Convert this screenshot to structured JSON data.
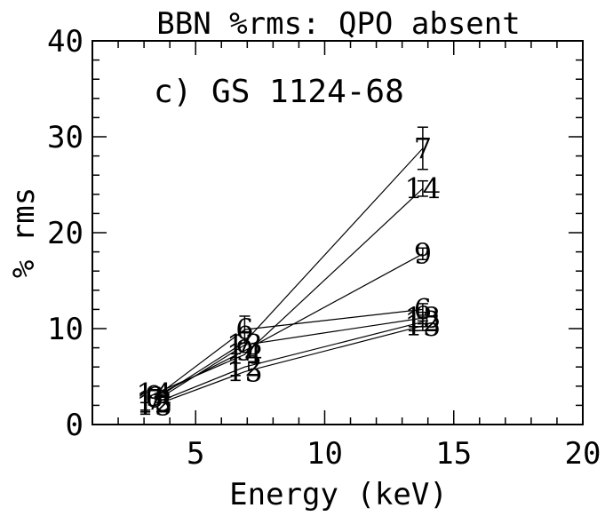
{
  "chart_data": {
    "type": "line",
    "title": "BBN %rms: QPO absent",
    "annotation": "c) GS 1124-68",
    "xlabel": "Energy (keV)",
    "ylabel": "% rms",
    "xlim": [
      1,
      20
    ],
    "ylim": [
      0,
      40
    ],
    "x_ticks": [
      5,
      10,
      15,
      20
    ],
    "y_ticks": [
      0,
      10,
      20,
      30,
      40
    ],
    "x_minor_step": 1,
    "y_minor_step": 2,
    "grid": false,
    "legend": "none",
    "x": [
      3.4,
      6.9,
      13.8
    ],
    "series": [
      {
        "label": "7",
        "values": [
          2.6,
          8.6,
          28.8
        ],
        "error": [
          0,
          0,
          2.2
        ]
      },
      {
        "label": "14",
        "values": [
          3.2,
          7.3,
          24.6
        ],
        "error": [
          0,
          0,
          0.8
        ]
      },
      {
        "label": "9",
        "values": [
          2.9,
          7.7,
          17.8
        ],
        "error": [
          0,
          0,
          0.6
        ]
      },
      {
        "label": "6",
        "values": [
          2.8,
          9.9,
          12.0
        ],
        "error": [
          0,
          1.4,
          0.6
        ]
      },
      {
        "label": "13",
        "values": [
          2.4,
          8.3,
          11.1
        ],
        "error": [
          0,
          0,
          0.6
        ]
      },
      {
        "label": "12",
        "values": [
          2.2,
          6.0,
          10.7
        ],
        "error": [
          0,
          0,
          0.5
        ]
      },
      {
        "label": "15",
        "values": [
          2.0,
          5.5,
          10.3
        ],
        "error": [
          0,
          0,
          0.5
        ]
      }
    ]
  }
}
